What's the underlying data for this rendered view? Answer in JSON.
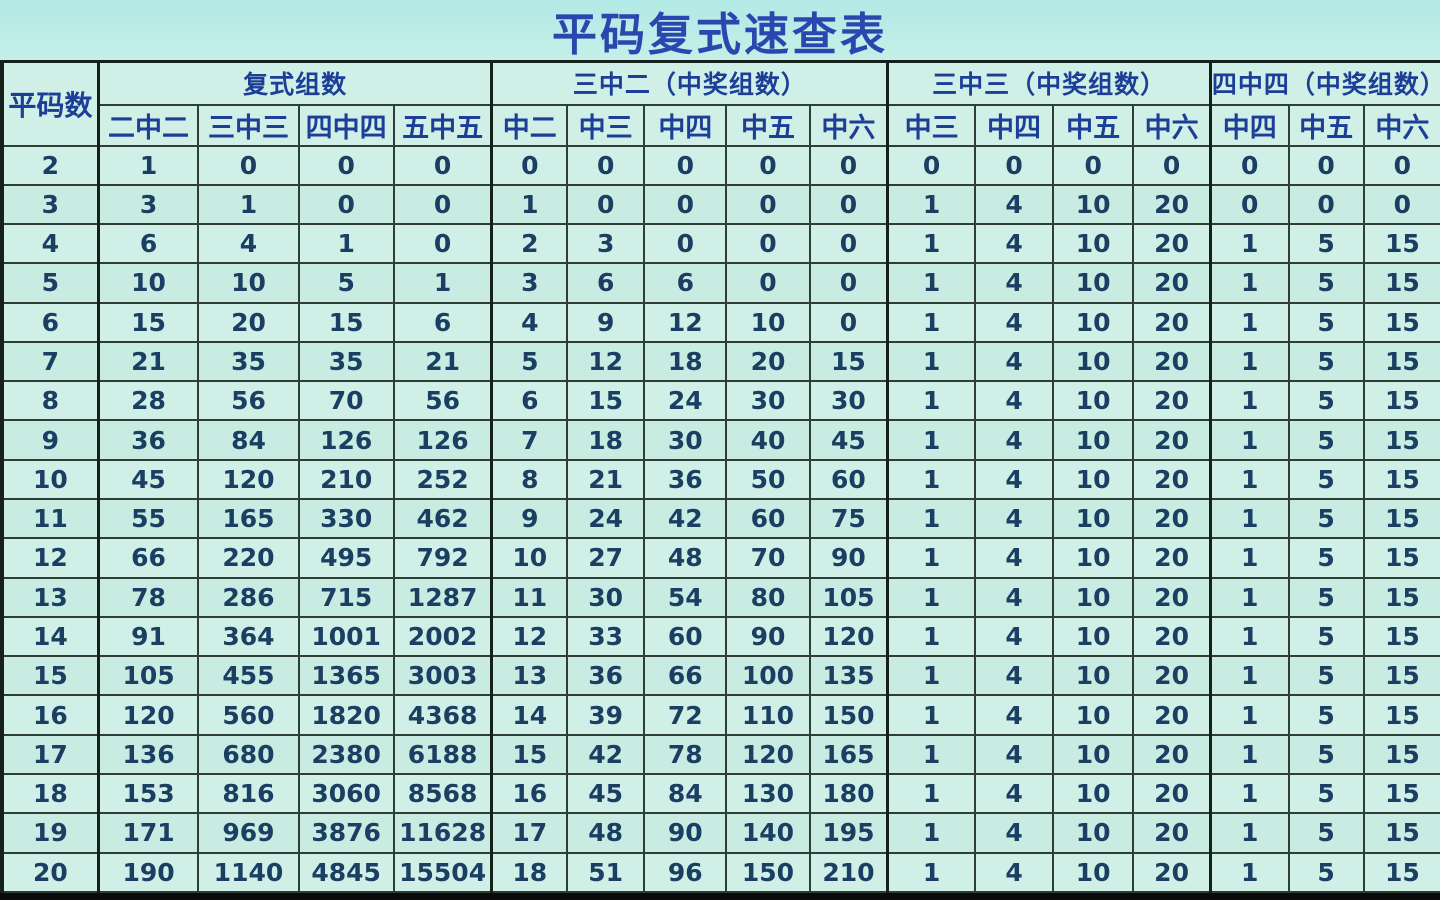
{
  "title": "平码复式速查表",
  "colors": {
    "background_top": "#b2e9e6",
    "background_low": "#cff2e8",
    "cell_background": "#cfefe7",
    "grid_line": "#2e3e36",
    "number_text": "#1b3f63",
    "header_text": "#1c3e96",
    "title_text": "#2b46ae",
    "bottom_bar": "#0b0b0b"
  },
  "chart_data": {
    "type": "table",
    "title": "平码复式速查表",
    "corner_header": "平码数",
    "column_groups": [
      {
        "label": "复式组数",
        "columns": [
          "二中二",
          "三中三",
          "四中四",
          "五中五"
        ]
      },
      {
        "label": "三中二（中奖组数）",
        "columns": [
          "中二",
          "中三",
          "中四",
          "中五",
          "中六"
        ]
      },
      {
        "label": "三中三（中奖组数）",
        "columns": [
          "中三",
          "中四",
          "中五",
          "中六"
        ]
      },
      {
        "label": "四中四（中奖组数）",
        "columns": [
          "中四",
          "中五",
          "中六"
        ]
      }
    ],
    "rows": [
      {
        "count": "2",
        "values": [
          "1",
          "0",
          "0",
          "0",
          "0",
          "0",
          "0",
          "0",
          "0",
          "0",
          "0",
          "0",
          "0",
          "0",
          "0",
          "0"
        ]
      },
      {
        "count": "3",
        "values": [
          "3",
          "1",
          "0",
          "0",
          "1",
          "0",
          "0",
          "0",
          "0",
          "1",
          "4",
          "10",
          "20",
          "0",
          "0",
          "0"
        ]
      },
      {
        "count": "4",
        "values": [
          "6",
          "4",
          "1",
          "0",
          "2",
          "3",
          "0",
          "0",
          "0",
          "1",
          "4",
          "10",
          "20",
          "1",
          "5",
          "15"
        ]
      },
      {
        "count": "5",
        "values": [
          "10",
          "10",
          "5",
          "1",
          "3",
          "6",
          "6",
          "0",
          "0",
          "1",
          "4",
          "10",
          "20",
          "1",
          "5",
          "15"
        ]
      },
      {
        "count": "6",
        "values": [
          "15",
          "20",
          "15",
          "6",
          "4",
          "9",
          "12",
          "10",
          "0",
          "1",
          "4",
          "10",
          "20",
          "1",
          "5",
          "15"
        ]
      },
      {
        "count": "7",
        "values": [
          "21",
          "35",
          "35",
          "21",
          "5",
          "12",
          "18",
          "20",
          "15",
          "1",
          "4",
          "10",
          "20",
          "1",
          "5",
          "15"
        ]
      },
      {
        "count": "8",
        "values": [
          "28",
          "56",
          "70",
          "56",
          "6",
          "15",
          "24",
          "30",
          "30",
          "1",
          "4",
          "10",
          "20",
          "1",
          "5",
          "15"
        ]
      },
      {
        "count": "9",
        "values": [
          "36",
          "84",
          "126",
          "126",
          "7",
          "18",
          "30",
          "40",
          "45",
          "1",
          "4",
          "10",
          "20",
          "1",
          "5",
          "15"
        ]
      },
      {
        "count": "10",
        "values": [
          "45",
          "120",
          "210",
          "252",
          "8",
          "21",
          "36",
          "50",
          "60",
          "1",
          "4",
          "10",
          "20",
          "1",
          "5",
          "15"
        ]
      },
      {
        "count": "11",
        "values": [
          "55",
          "165",
          "330",
          "462",
          "9",
          "24",
          "42",
          "60",
          "75",
          "1",
          "4",
          "10",
          "20",
          "1",
          "5",
          "15"
        ]
      },
      {
        "count": "12",
        "values": [
          "66",
          "220",
          "495",
          "792",
          "10",
          "27",
          "48",
          "70",
          "90",
          "1",
          "4",
          "10",
          "20",
          "1",
          "5",
          "15"
        ]
      },
      {
        "count": "13",
        "values": [
          "78",
          "286",
          "715",
          "1287",
          "11",
          "30",
          "54",
          "80",
          "105",
          "1",
          "4",
          "10",
          "20",
          "1",
          "5",
          "15"
        ]
      },
      {
        "count": "14",
        "values": [
          "91",
          "364",
          "1001",
          "2002",
          "12",
          "33",
          "60",
          "90",
          "120",
          "1",
          "4",
          "10",
          "20",
          "1",
          "5",
          "15"
        ]
      },
      {
        "count": "15",
        "values": [
          "105",
          "455",
          "1365",
          "3003",
          "13",
          "36",
          "66",
          "100",
          "135",
          "1",
          "4",
          "10",
          "20",
          "1",
          "5",
          "15"
        ]
      },
      {
        "count": "16",
        "values": [
          "120",
          "560",
          "1820",
          "4368",
          "14",
          "39",
          "72",
          "110",
          "150",
          "1",
          "4",
          "10",
          "20",
          "1",
          "5",
          "15"
        ]
      },
      {
        "count": "17",
        "values": [
          "136",
          "680",
          "2380",
          "6188",
          "15",
          "42",
          "78",
          "120",
          "165",
          "1",
          "4",
          "10",
          "20",
          "1",
          "5",
          "15"
        ]
      },
      {
        "count": "18",
        "values": [
          "153",
          "816",
          "3060",
          "8568",
          "16",
          "45",
          "84",
          "130",
          "180",
          "1",
          "4",
          "10",
          "20",
          "1",
          "5",
          "15"
        ]
      },
      {
        "count": "19",
        "values": [
          "171",
          "969",
          "3876",
          "11628",
          "17",
          "48",
          "90",
          "140",
          "195",
          "1",
          "4",
          "10",
          "20",
          "1",
          "5",
          "15"
        ]
      },
      {
        "count": "20",
        "values": [
          "190",
          "1140",
          "4845",
          "15504",
          "18",
          "51",
          "96",
          "150",
          "210",
          "1",
          "4",
          "10",
          "20",
          "1",
          "5",
          "15"
        ]
      }
    ]
  }
}
